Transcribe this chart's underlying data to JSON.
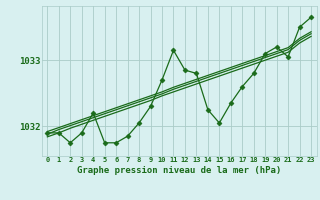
{
  "xlabel": "Graphe pression niveau de la mer (hPa)",
  "hours": [
    0,
    1,
    2,
    3,
    4,
    5,
    6,
    7,
    8,
    9,
    10,
    11,
    12,
    13,
    14,
    15,
    16,
    17,
    18,
    19,
    20,
    21,
    22,
    23
  ],
  "pressure": [
    1031.9,
    1031.9,
    1031.75,
    1031.9,
    1032.2,
    1031.75,
    1031.75,
    1031.85,
    1032.05,
    1032.3,
    1032.7,
    1033.15,
    1032.85,
    1032.8,
    1032.25,
    1032.05,
    1032.35,
    1032.6,
    1032.8,
    1033.1,
    1033.2,
    1033.05,
    1033.5,
    1033.65
  ],
  "trend1": [
    1031.88,
    1031.95,
    1032.01,
    1032.07,
    1032.13,
    1032.19,
    1032.25,
    1032.31,
    1032.37,
    1032.43,
    1032.49,
    1032.56,
    1032.62,
    1032.68,
    1032.74,
    1032.8,
    1032.86,
    1032.92,
    1032.98,
    1033.04,
    1033.1,
    1033.16,
    1033.3,
    1033.4
  ],
  "trend2": [
    1031.84,
    1031.9,
    1031.97,
    1032.03,
    1032.09,
    1032.15,
    1032.21,
    1032.27,
    1032.33,
    1032.39,
    1032.46,
    1032.52,
    1032.58,
    1032.64,
    1032.7,
    1032.76,
    1032.82,
    1032.88,
    1032.94,
    1033.0,
    1033.06,
    1033.12,
    1033.26,
    1033.36
  ],
  "trend3": [
    1031.92,
    1031.98,
    1032.04,
    1032.1,
    1032.16,
    1032.22,
    1032.28,
    1032.34,
    1032.4,
    1032.46,
    1032.52,
    1032.59,
    1032.65,
    1032.71,
    1032.77,
    1032.83,
    1032.89,
    1032.95,
    1033.01,
    1033.07,
    1033.13,
    1033.19,
    1033.33,
    1033.43
  ],
  "line_color": "#1a6b1a",
  "bg_color": "#d8f0f0",
  "grid_color": "#aaccc8",
  "text_color": "#1a6b1a",
  "ylim_min": 1031.55,
  "ylim_max": 1033.82,
  "yticks": [
    1032,
    1033
  ],
  "marker": "D",
  "marker_size": 2.5
}
